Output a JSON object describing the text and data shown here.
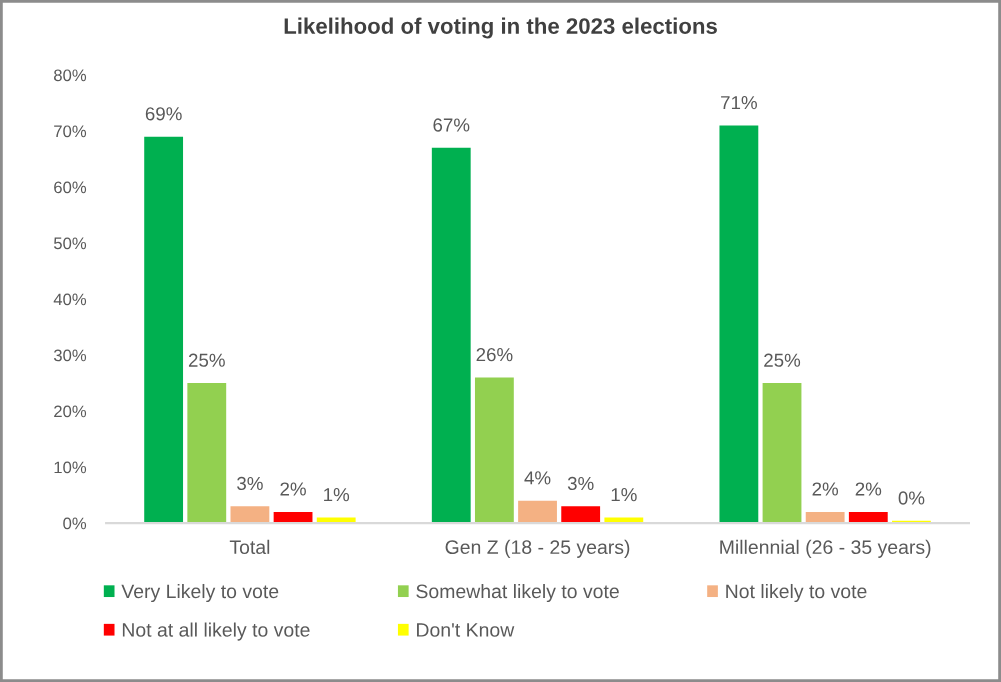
{
  "chart_data": {
    "type": "bar",
    "title": "Likelihood of voting in the 2023 elections",
    "categories": [
      "Total",
      "Gen Z (18 - 25 years)",
      "Millennial (26 - 35 years)"
    ],
    "series": [
      {
        "name": "Very Likely to vote",
        "color": "#00b050",
        "values": [
          69,
          67,
          71
        ],
        "value_labels": [
          "69%",
          "67%",
          "71%"
        ]
      },
      {
        "name": "Somewhat likely to vote",
        "color": "#92d050",
        "values": [
          25,
          26,
          25
        ],
        "value_labels": [
          "25%",
          "26%",
          "25%"
        ]
      },
      {
        "name": "Not likely to vote",
        "color": "#f4b183",
        "values": [
          3,
          4,
          2
        ],
        "value_labels": [
          "3%",
          "4%",
          "2%"
        ]
      },
      {
        "name": "Not at all likely to vote",
        "color": "#ff0000",
        "values": [
          2,
          3,
          2
        ],
        "value_labels": [
          "2%",
          "3%",
          "2%"
        ]
      },
      {
        "name": "Don't Know",
        "color": "#ffff00",
        "values": [
          1,
          1,
          0.4
        ],
        "value_labels": [
          "1%",
          "1%",
          "0%"
        ]
      }
    ],
    "ylim": [
      0,
      80
    ],
    "yticks": [
      {
        "value": 0,
        "label": "0%"
      },
      {
        "value": 10,
        "label": "10%"
      },
      {
        "value": 20,
        "label": "20%"
      },
      {
        "value": 30,
        "label": "30%"
      },
      {
        "value": 40,
        "label": "40%"
      },
      {
        "value": 50,
        "label": "50%"
      },
      {
        "value": 60,
        "label": "60%"
      },
      {
        "value": 70,
        "label": "70%"
      },
      {
        "value": 80,
        "label": "80%"
      }
    ],
    "grid": false,
    "legend": "bottom"
  }
}
